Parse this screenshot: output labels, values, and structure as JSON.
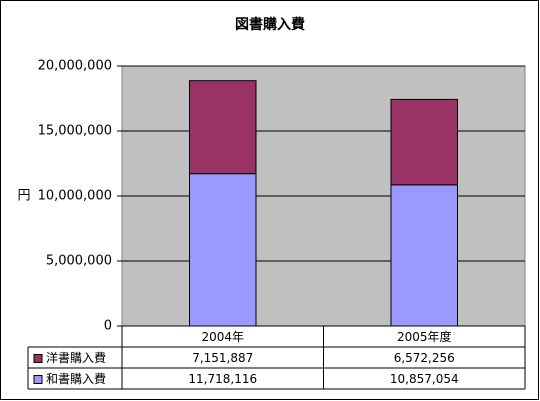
{
  "chart_data": {
    "type": "stacked-bar",
    "title": "図書購入費",
    "y_label": "円",
    "categories": [
      "2004年",
      "2005年度"
    ],
    "series": [
      {
        "name": "洋書購入費",
        "color": "#993366",
        "values": [
          7151887,
          6572256
        ],
        "value_labels": [
          "7,151,887",
          "6,572,256"
        ]
      },
      {
        "name": "和書購入費",
        "color": "#9999ff",
        "values": [
          11718116,
          10857054
        ],
        "value_labels": [
          "11,718,116",
          "10,857,054"
        ]
      }
    ],
    "ylim": [
      0,
      20000000
    ],
    "yticks": [
      0,
      {
        "value": 5000000,
        "label": "5,000,000"
      },
      {
        "value": 10000000,
        "label": "10,000,000"
      },
      {
        "value": 15000000,
        "label": "15,000,000"
      },
      {
        "value": 20000000,
        "label": "20,000,000"
      }
    ],
    "grid": true,
    "plot_background": "#c0c0c0"
  }
}
